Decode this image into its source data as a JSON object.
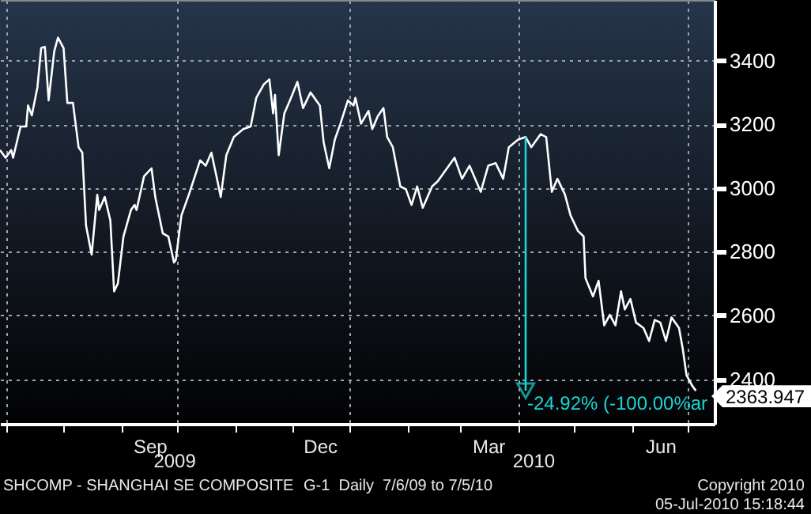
{
  "chart_data": {
    "type": "line",
    "x": [
      "2009-06-28",
      "2009-07-01",
      "2009-07-04",
      "2009-07-05",
      "2009-07-09",
      "2009-07-12",
      "2009-07-13",
      "2009-07-15",
      "2009-07-18",
      "2009-07-20",
      "2009-07-22",
      "2009-07-24",
      "2009-07-27",
      "2009-07-29",
      "2009-08-01",
      "2009-08-03",
      "2009-08-06",
      "2009-08-09",
      "2009-08-11",
      "2009-08-13",
      "2009-08-16",
      "2009-08-19",
      "2009-08-20",
      "2009-08-23",
      "2009-08-26",
      "2009-08-28",
      "2009-08-30",
      "2009-09-02",
      "2009-09-06",
      "2009-09-08",
      "2009-09-09",
      "2009-09-13",
      "2009-09-17",
      "2009-09-19",
      "2009-09-23",
      "2009-09-26",
      "2009-09-29",
      "2009-09-30",
      "2009-10-03",
      "2009-10-07",
      "2009-10-13",
      "2009-10-16",
      "2009-10-19",
      "2009-10-22",
      "2009-10-24",
      "2009-10-27",
      "2009-10-31",
      "2009-11-05",
      "2009-11-09",
      "2009-11-12",
      "2009-11-16",
      "2009-11-19",
      "2009-11-21",
      "2009-11-22",
      "2009-11-24",
      "2009-11-27",
      "2009-11-30",
      "2009-12-04",
      "2009-12-07",
      "2009-12-11",
      "2009-12-16",
      "2009-12-18",
      "2009-12-21",
      "2009-12-24",
      "2009-12-27",
      "2009-12-31",
      "2010-01-03",
      "2010-01-04",
      "2010-01-07",
      "2010-01-11",
      "2010-01-13",
      "2010-01-16",
      "2010-01-19",
      "2010-01-21",
      "2010-01-24",
      "2010-01-28",
      "2010-01-31",
      "2010-02-03",
      "2010-02-06",
      "2010-02-09",
      "2010-02-14",
      "2010-02-17",
      "2010-02-21",
      "2010-02-26",
      "2010-03-02",
      "2010-03-06",
      "2010-03-12",
      "2010-03-16",
      "2010-03-20",
      "2010-03-24",
      "2010-03-27",
      "2010-04-01",
      "2010-04-05",
      "2010-04-08",
      "2010-04-13",
      "2010-04-16",
      "2010-04-19",
      "2010-04-22",
      "2010-04-26",
      "2010-04-29",
      "2010-05-03",
      "2010-05-06",
      "2010-05-07",
      "2010-05-11",
      "2010-05-14",
      "2010-05-17",
      "2010-05-20",
      "2010-05-23",
      "2010-05-26",
      "2010-05-28",
      "2010-05-31",
      "2010-06-03",
      "2010-06-07",
      "2010-06-10",
      "2010-06-13",
      "2010-06-16",
      "2010-06-19",
      "2010-06-22",
      "2010-06-26",
      "2010-06-28",
      "2010-06-30",
      "2010-07-03",
      "2010-07-05"
    ],
    "series": [
      {
        "color": "#ffffff",
        "values": [
          3119,
          3095,
          3119,
          3095,
          3193,
          3193,
          3259,
          3228,
          3316,
          3439,
          3443,
          3275,
          3429,
          3472,
          3439,
          3267,
          3267,
          3128,
          3111,
          2882,
          2791,
          2979,
          2931,
          2972,
          2898,
          2676,
          2700,
          2848,
          2931,
          2947,
          2931,
          3037,
          3062,
          2972,
          2858,
          2848,
          2766,
          2775,
          2914,
          2980,
          3087,
          3070,
          3111,
          3029,
          2972,
          3103,
          3160,
          3185,
          3193,
          3283,
          3325,
          3341,
          3234,
          3292,
          3103,
          3234,
          3275,
          3333,
          3251,
          3300,
          3259,
          3144,
          3062,
          3152,
          3202,
          3275,
          3259,
          3283,
          3202,
          3242,
          3185,
          3226,
          3251,
          3160,
          3128,
          3005,
          2996,
          2947,
          3005,
          2938,
          3005,
          3021,
          3054,
          3095,
          3029,
          3070,
          2988,
          3070,
          3078,
          3029,
          3128,
          3152,
          3160,
          3128,
          3169,
          3160,
          2988,
          3029,
          2980,
          2914,
          2865,
          2848,
          2717,
          2660,
          2709,
          2569,
          2602,
          2569,
          2676,
          2619,
          2652,
          2578,
          2561,
          2520,
          2586,
          2578,
          2520,
          2594,
          2561,
          2495,
          2413,
          2380,
          2363.947
        ],
        "value_labels": [
          null,
          null,
          null,
          null,
          null,
          null,
          null,
          null,
          null,
          null,
          null,
          null,
          null,
          null,
          null,
          null,
          null,
          null,
          null,
          null,
          null,
          null,
          null,
          null,
          null,
          null,
          null,
          null,
          null,
          null,
          null,
          null,
          null,
          null,
          null,
          null,
          null,
          null,
          null,
          null,
          null,
          null,
          null,
          null,
          null,
          null,
          null,
          null,
          null,
          null,
          null,
          null,
          null,
          null,
          null,
          null,
          null,
          null,
          null,
          null,
          null,
          null,
          null,
          null,
          null,
          null,
          null,
          null,
          null,
          null,
          null,
          null,
          null,
          null,
          null,
          null,
          null,
          null,
          null,
          null,
          null,
          null,
          null,
          null,
          null,
          null,
          null,
          null,
          null,
          null,
          null,
          null,
          null,
          null,
          null,
          null,
          null,
          null,
          null,
          null,
          null,
          null,
          null,
          null,
          null,
          null,
          null,
          null,
          null,
          null,
          null,
          null,
          null,
          null,
          null,
          null,
          null,
          null,
          null,
          null,
          null,
          null,
          "2363.947"
        ]
      }
    ],
    "xlim": [
      "2009-06-28",
      "2010-07-15"
    ],
    "x2lim": [
      "2009-06-28",
      "2010-07-15"
    ],
    "x2ticks": [
      {
        "value": "2009-09-29",
        "label": "2009"
      },
      {
        "value": "2010-04-09",
        "label": "2010"
      }
    ],
    "xticks": [
      {
        "value": "2009-07-01",
        "label": null
      },
      {
        "value": "2009-08-01",
        "label": null
      },
      {
        "value": "2009-09-01",
        "label": null
      },
      {
        "value": "2009-09-16",
        "label": "Sep"
      },
      {
        "value": "2009-10-01",
        "label": null
      },
      {
        "value": "2009-11-01",
        "label": null
      },
      {
        "value": "2009-12-01",
        "label": null
      },
      {
        "value": "2009-12-16",
        "label": "Dec"
      },
      {
        "value": "2010-01-01",
        "label": null
      },
      {
        "value": "2010-02-01",
        "label": null
      },
      {
        "value": "2010-03-01",
        "label": null
      },
      {
        "value": "2010-03-16",
        "label": "Mar"
      },
      {
        "value": "2010-04-01",
        "label": null
      },
      {
        "value": "2010-05-01",
        "label": null
      },
      {
        "value": "2010-06-01",
        "label": null
      },
      {
        "value": "2010-06-16",
        "label": "Jun"
      },
      {
        "value": "2010-07-01",
        "label": null
      }
    ],
    "ylim": [
      2260,
      3590
    ],
    "yticks": [
      2400,
      2600,
      2800,
      3000,
      3200,
      3400
    ],
    "grid": true,
    "annotations": [
      {
        "text": "-24.92% (-100.00%ar",
        "x": "2010-04-05",
        "y": 2363.947
      },
      "SHCOMP - SHANGHAI SE COMPOSITE",
      "G-1  Daily  7/6/09 to 7/5/10",
      "Copyright 2010",
      "05-Jul-2010 15:18:44"
    ]
  }
}
